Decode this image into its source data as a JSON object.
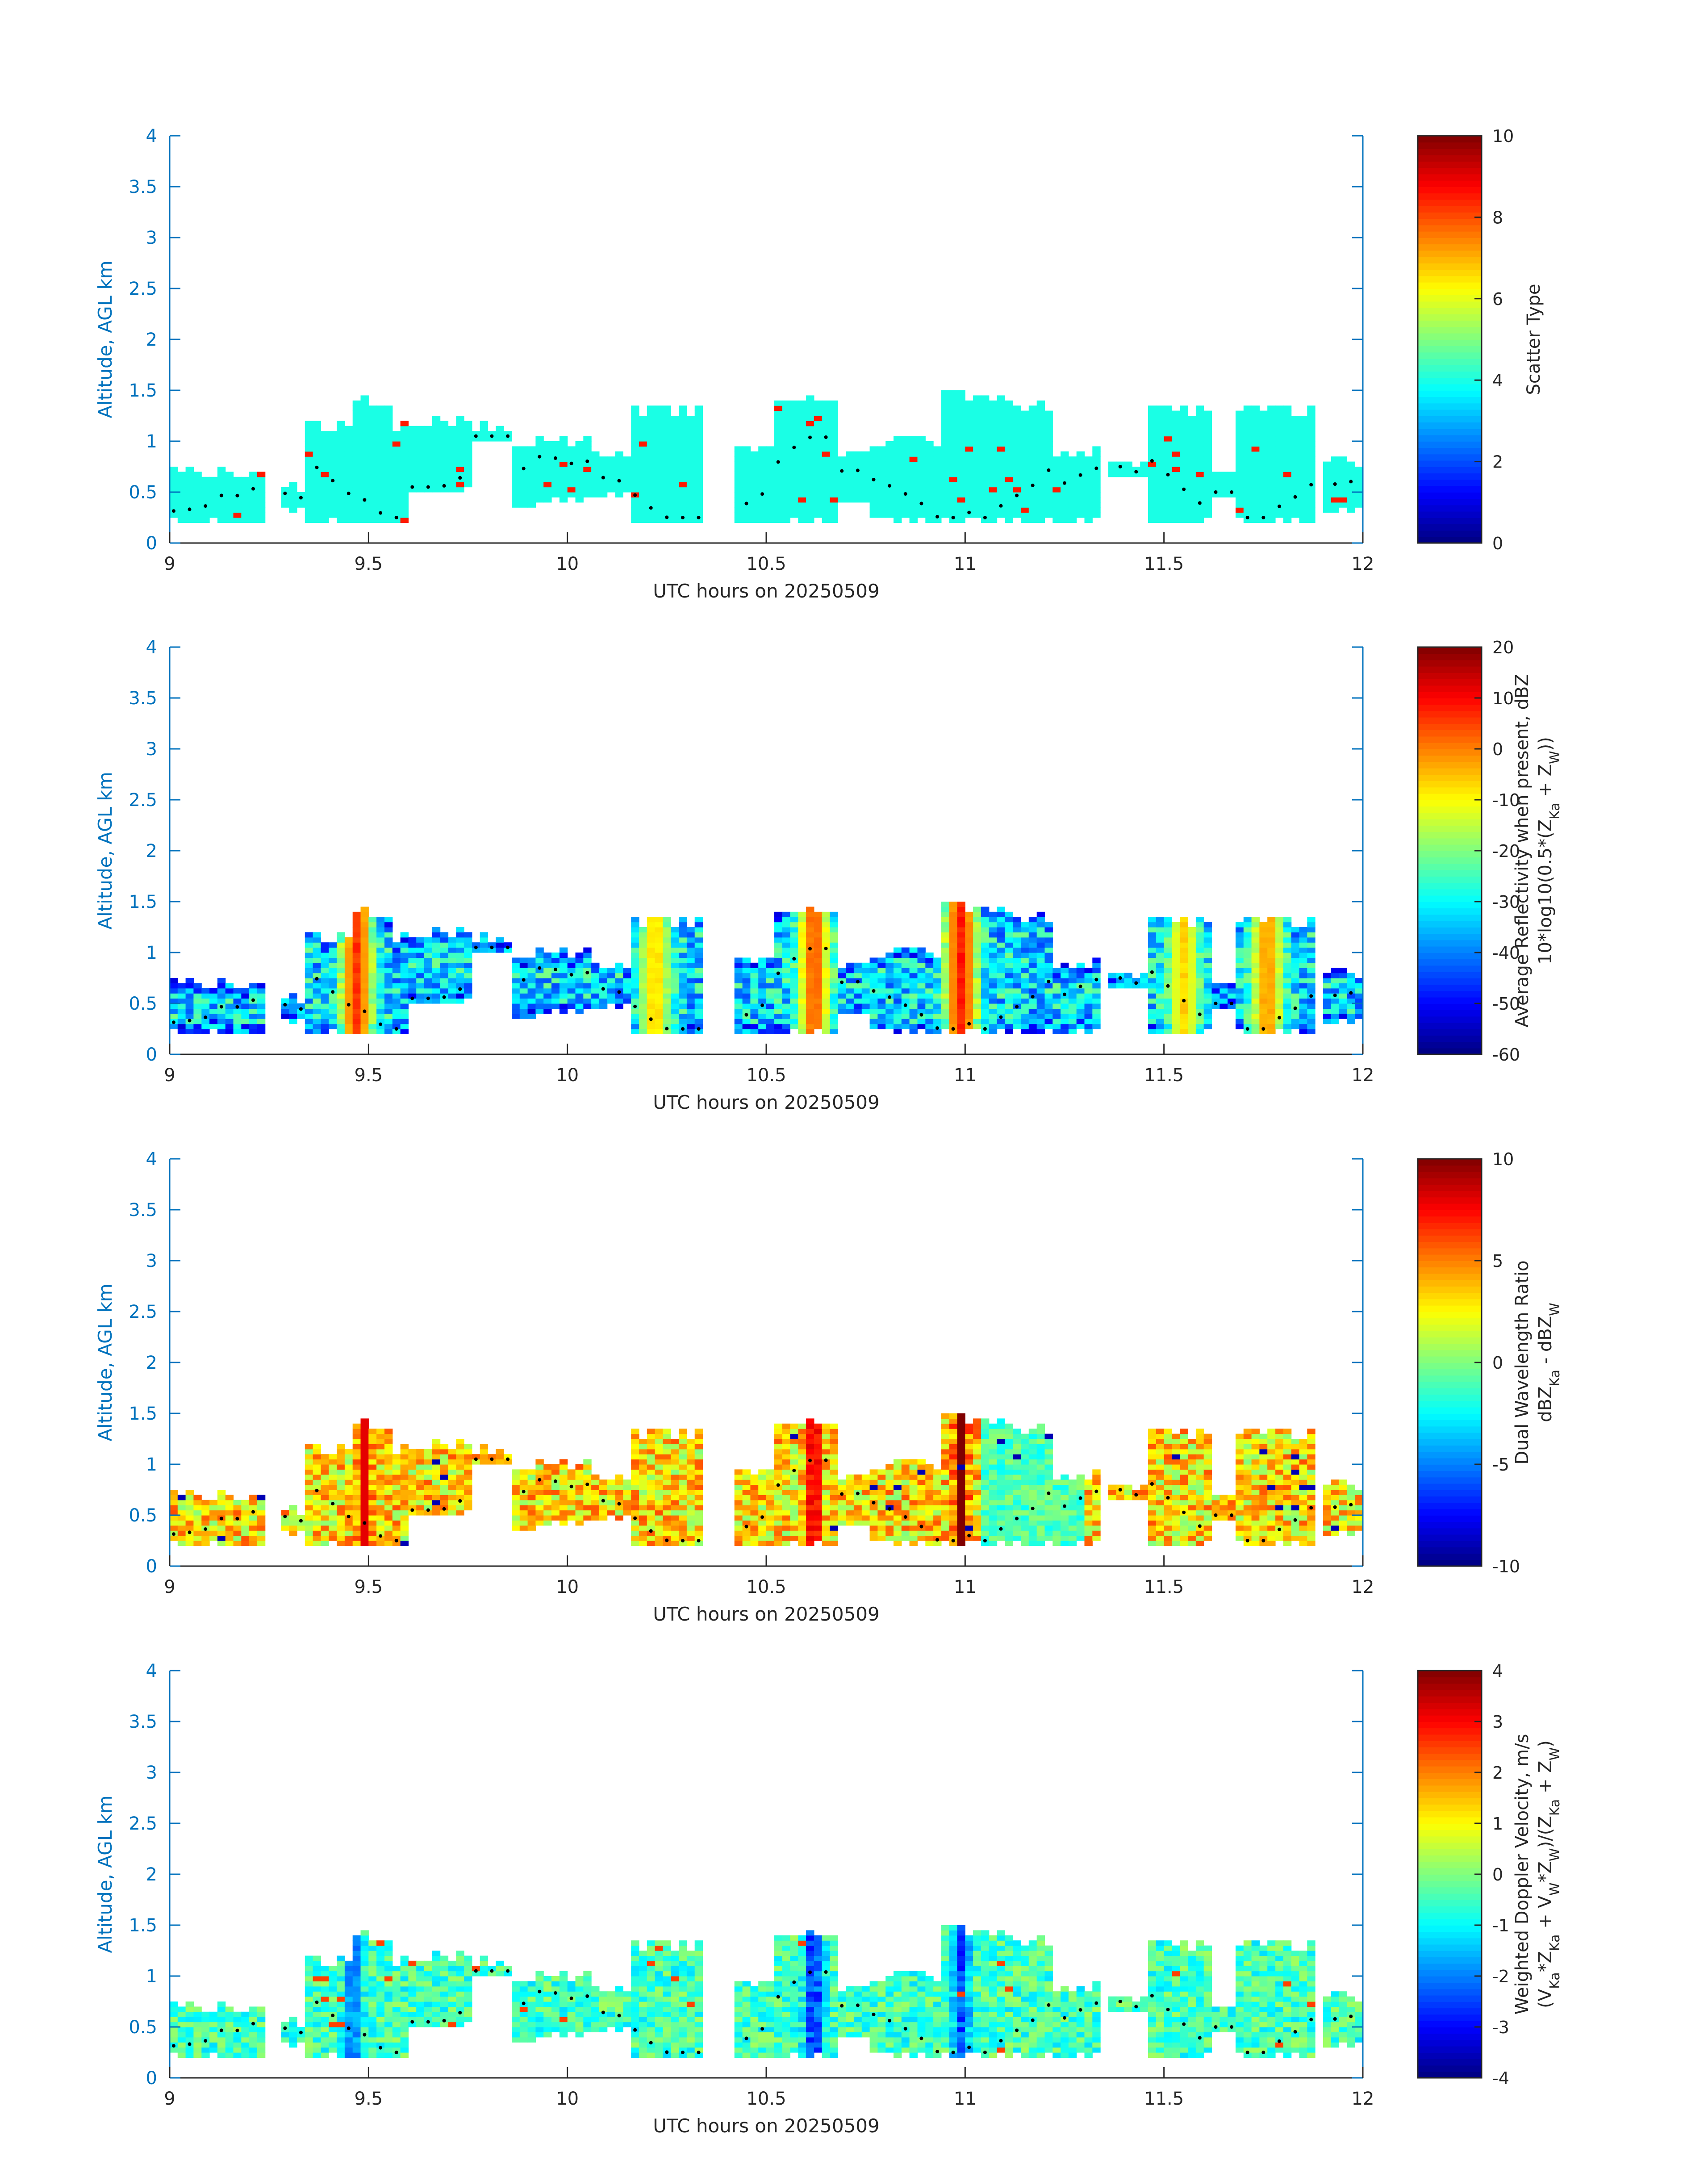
{
  "figure": {
    "panels": [
      {
        "id": "scatter-type",
        "cb_min": 0,
        "cb_max": 10,
        "cb_ticks": [
          0,
          2,
          4,
          6,
          8,
          10
        ],
        "cb_tick_labels": [
          "0",
          "2",
          "4",
          "6",
          "8",
          "10"
        ],
        "cb_label_lines": [
          "Scatter Type"
        ]
      },
      {
        "id": "reflectivity",
        "cb_min": -60,
        "cb_max": 20,
        "cb_ticks": [
          -60,
          -50,
          -40,
          -30,
          -20,
          -10,
          0,
          10,
          20
        ],
        "cb_tick_labels": [
          "-60",
          "-50",
          "-40",
          "-30",
          "-20",
          "-10",
          "0",
          "10",
          "20"
        ],
        "cb_label_lines": [
          "Average Reflectivity when present, dBZ",
          "10*log10(0.5*(Z_Ka + Z_W))"
        ]
      },
      {
        "id": "dual-wavelength-ratio",
        "cb_min": -10,
        "cb_max": 10,
        "cb_ticks": [
          -10,
          -5,
          0,
          5,
          10
        ],
        "cb_tick_labels": [
          "-10",
          "-5",
          "0",
          "5",
          "10"
        ],
        "cb_label_lines": [
          "Dual Wavelength Ratio",
          "dBZ_Ka - dBZ_W"
        ]
      },
      {
        "id": "doppler-velocity",
        "cb_min": -4,
        "cb_max": 4,
        "cb_ticks": [
          -4,
          -3,
          -2,
          -1,
          0,
          1,
          2,
          3,
          4
        ],
        "cb_tick_labels": [
          "-4",
          "-3",
          "-2",
          "-1",
          "0",
          "1",
          "2",
          "3",
          "4"
        ],
        "cb_label_lines": [
          "Weighted Doppler Velocity, m/s",
          "(V_Ka*Z_Ka + V_W*Z_W)/(Z_Ka + Z_W)"
        ]
      }
    ]
  },
  "chart_data": [
    {
      "type": "heatmap",
      "xlabel": "UTC hours on 20250509",
      "ylabel": "Altitude, AGL km",
      "xlim": [
        9,
        12
      ],
      "ylim": [
        0,
        4
      ],
      "xticks": [
        9,
        9.5,
        10,
        10.5,
        11,
        11.5,
        12
      ],
      "xtick_labels": [
        "9",
        "9.5",
        "10",
        "10.5",
        "11",
        "11.5",
        "12"
      ],
      "yticks": [
        0,
        0.5,
        1,
        1.5,
        2,
        2.5,
        3,
        3.5,
        4
      ],
      "ytick_labels": [
        "0",
        "0.5",
        "1",
        "1.5",
        "2",
        "2.5",
        "3",
        "3.5",
        "4"
      ],
      "colorbar_label": "Scatter Type",
      "colorbar_range": [
        0,
        10
      ],
      "dominant_value": 4,
      "secondary_value": 8.5,
      "overlay": "cloud-base markers (black dots)"
    },
    {
      "type": "heatmap",
      "xlabel": "UTC hours on 20250509",
      "ylabel": "Altitude, AGL km",
      "xlim": [
        9,
        12
      ],
      "ylim": [
        0,
        4
      ],
      "xticks": [
        9,
        9.5,
        10,
        10.5,
        11,
        11.5,
        12
      ],
      "xtick_labels": [
        "9",
        "9.5",
        "10",
        "10.5",
        "11",
        "11.5",
        "12"
      ],
      "yticks": [
        0,
        0.5,
        1,
        1.5,
        2,
        2.5,
        3,
        3.5,
        4
      ],
      "ytick_labels": [
        "0",
        "0.5",
        "1",
        "1.5",
        "2",
        "2.5",
        "3",
        "3.5",
        "4"
      ],
      "colorbar_label": "Average Reflectivity when present, dBZ / 10*log10(0.5*(Z_Ka + Z_W))",
      "colorbar_range": [
        -60,
        20
      ],
      "cores": [
        {
          "x": 9.47,
          "value": 8
        },
        {
          "x": 10.22,
          "value": -5
        },
        {
          "x": 10.62,
          "value": 5
        },
        {
          "x": 10.99,
          "value": 10
        },
        {
          "x": 11.55,
          "value": -5
        },
        {
          "x": 11.76,
          "value": 0
        }
      ],
      "overlay": "cloud-base markers (black dots)"
    },
    {
      "type": "heatmap",
      "xlabel": "UTC hours on 20250509",
      "ylabel": "Altitude, AGL km",
      "xlim": [
        9,
        12
      ],
      "ylim": [
        0,
        4
      ],
      "xticks": [
        9,
        9.5,
        10,
        10.5,
        11,
        11.5,
        12
      ],
      "xtick_labels": [
        "9",
        "9.5",
        "10",
        "10.5",
        "11",
        "11.5",
        "12"
      ],
      "yticks": [
        0,
        0.5,
        1,
        1.5,
        2,
        2.5,
        3,
        3.5,
        4
      ],
      "ytick_labels": [
        "0",
        "0.5",
        "1",
        "1.5",
        "2",
        "2.5",
        "3",
        "3.5",
        "4"
      ],
      "colorbar_label": "Dual Wavelength Ratio / dBZ_Ka - dBZ_W",
      "colorbar_range": [
        -10,
        10
      ],
      "typical_value": 3,
      "cores": [
        {
          "x": 9.49,
          "value": 8
        },
        {
          "x": 10.62,
          "value": 9
        },
        {
          "x": 10.99,
          "value": 10
        }
      ],
      "overlay": "cloud-base markers (black dots)"
    },
    {
      "type": "heatmap",
      "xlabel": "UTC hours on 20250509",
      "ylabel": "Altitude, AGL km",
      "xlim": [
        9,
        12
      ],
      "ylim": [
        0,
        4
      ],
      "xticks": [
        9,
        9.5,
        10,
        10.5,
        11,
        11.5,
        12
      ],
      "xtick_labels": [
        "9",
        "9.5",
        "10",
        "10.5",
        "11",
        "11.5",
        "12"
      ],
      "yticks": [
        0,
        0.5,
        1,
        1.5,
        2,
        2.5,
        3,
        3.5,
        4
      ],
      "ytick_labels": [
        "0",
        "0.5",
        "1",
        "1.5",
        "2",
        "2.5",
        "3",
        "3.5",
        "4"
      ],
      "colorbar_label": "Weighted Doppler Velocity, m/s / (V_Ka*Z_Ka + V_W*Z_W)/(Z_Ka + Z_W)",
      "colorbar_range": [
        -4,
        4
      ],
      "typical_value": -0.5,
      "cores": [
        {
          "x": 9.46,
          "value": -2.5
        },
        {
          "x": 10.62,
          "value": -3.5
        },
        {
          "x": 10.99,
          "value": -3
        }
      ],
      "overlay": "cloud-base markers (black dots)"
    }
  ]
}
